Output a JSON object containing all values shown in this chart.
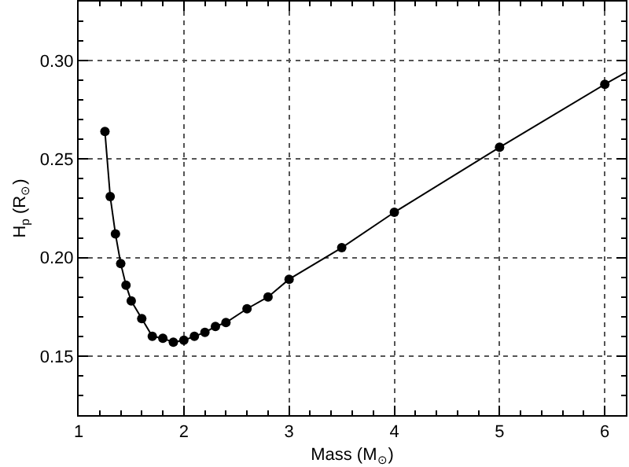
{
  "chart_data": {
    "type": "line",
    "xlabel": "Mass (M$_{⊙}$)",
    "ylabel": "H$_{p}$ (R$_{⊙}$)",
    "series": [
      {
        "color": "#000000",
        "marker": "circle",
        "x": [
          1.25,
          1.3,
          1.35,
          1.4,
          1.45,
          1.5,
          1.6,
          1.7,
          1.8,
          1.9,
          2.0,
          2.1,
          2.2,
          2.3,
          2.4,
          2.6,
          2.8,
          3.0,
          3.5,
          4.0,
          5.0,
          6.0
        ],
        "values": [
          0.264,
          0.231,
          0.212,
          0.197,
          0.186,
          0.178,
          0.169,
          0.16,
          0.159,
          0.157,
          0.158,
          0.16,
          0.162,
          0.165,
          0.167,
          0.174,
          0.18,
          0.189,
          0.205,
          0.223,
          0.256,
          0.288
        ]
      },
      {
        "color": "#000000",
        "marker": "none",
        "x": [
          6.0,
          6.2
        ],
        "values": [
          0.288,
          0.294
        ]
      }
    ],
    "xlim": [
      1,
      6.2
    ],
    "xticks": [
      1,
      2,
      3,
      4,
      5,
      6
    ],
    "ylim": [
      0.12,
      0.33
    ],
    "yticks": [
      0.15,
      {
        "value": 0.2,
        "label": "0.20"
      },
      0.25,
      {
        "value": 0.3,
        "label": "0.30"
      }
    ],
    "grid": true
  }
}
